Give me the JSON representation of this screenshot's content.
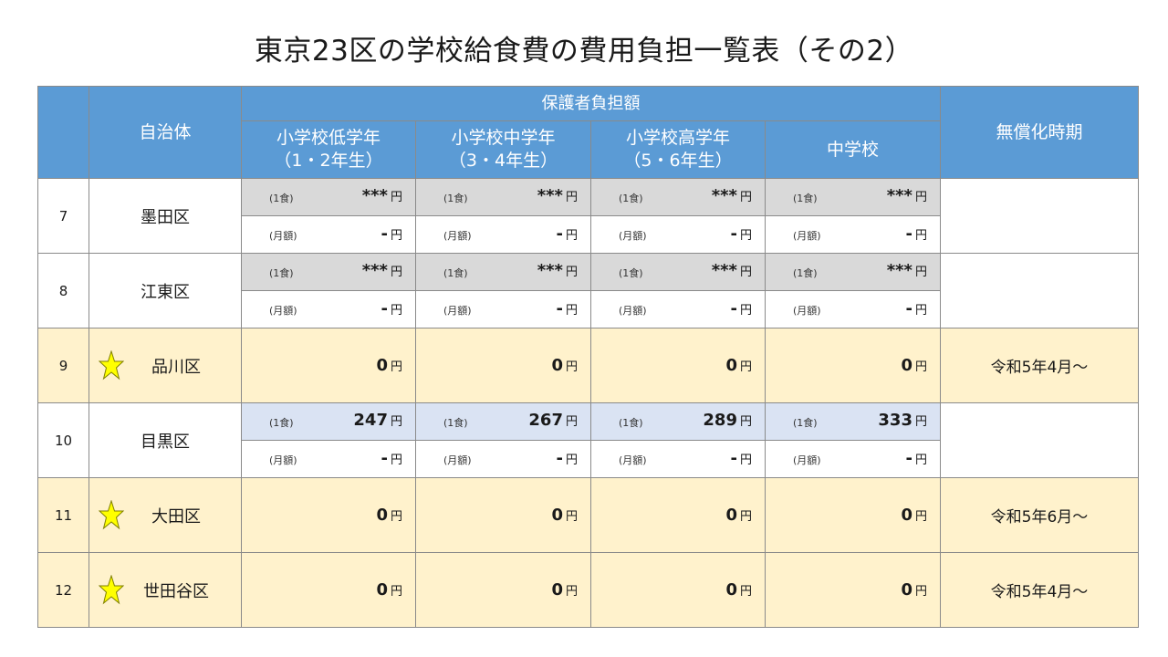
{
  "title": "東京23区の学校給食費の費用負担一覧表（その2）",
  "header": {
    "ward_label": "自治体",
    "burden_label": "保護者負担額",
    "free_timing_label": "無償化時期",
    "cols": [
      {
        "line1": "小学校低学年",
        "line2": "（1・2年生）"
      },
      {
        "line1": "小学校中学年",
        "line2": "（3・4年生）"
      },
      {
        "line1": "小学校高学年",
        "line2": "（5・6年生）"
      },
      {
        "line1": "中学校",
        "line2": ""
      }
    ]
  },
  "labels": {
    "per_meal": "(1食)",
    "monthly": "(月額)",
    "yen": "円"
  },
  "rows": [
    {
      "num": "7",
      "ward": "墨田区",
      "per_meal": [
        "***",
        "***",
        "***",
        "***"
      ],
      "monthly": [
        "-",
        "-",
        "-",
        "-"
      ]
    },
    {
      "num": "8",
      "ward": "江東区",
      "per_meal": [
        "***",
        "***",
        "***",
        "***"
      ],
      "monthly": [
        "-",
        "-",
        "-",
        "-"
      ]
    },
    {
      "num": "9",
      "ward": "品川区",
      "free": [
        "0",
        "0",
        "0",
        "0"
      ],
      "timing": "令和5年4月～"
    },
    {
      "num": "10",
      "ward": "目黒区",
      "per_meal": [
        "247",
        "267",
        "289",
        "333"
      ],
      "monthly": [
        "-",
        "-",
        "-",
        "-"
      ]
    },
    {
      "num": "11",
      "ward": "大田区",
      "free": [
        "0",
        "0",
        "0",
        "0"
      ],
      "timing": "令和5年6月～"
    },
    {
      "num": "12",
      "ward": "世田谷区",
      "free": [
        "0",
        "0",
        "0",
        "0"
      ],
      "timing": "令和5年4月～"
    }
  ],
  "colors": {
    "header": "#5b9bd5",
    "free_row": "#fff2cc",
    "unknown_row": "#d9d9d9",
    "meguro_row": "#dae3f3",
    "star": "#ffff00"
  },
  "icons": {
    "free_marker": "star-icon"
  }
}
